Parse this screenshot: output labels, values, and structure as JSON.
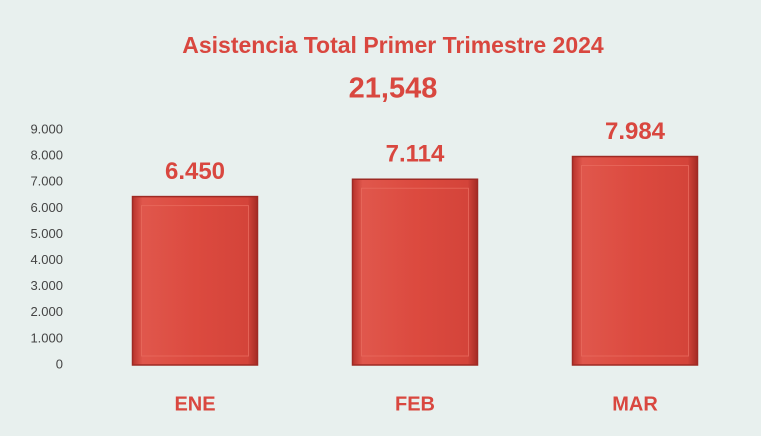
{
  "chart_data": {
    "type": "bar",
    "title": "Asistencia Total Primer Trimestre 2024",
    "subtitle": "21,548",
    "categories": [
      "ENE",
      "FEB",
      "MAR"
    ],
    "values": [
      6450,
      7114,
      7984
    ],
    "value_labels": [
      "6.450",
      "7.114",
      "7.984"
    ],
    "color": "#d9443a",
    "ylim": [
      0,
      9000
    ],
    "yticks": [
      0,
      {
        "value": 1000,
        "label": "1.000"
      },
      {
        "value": 2000,
        "label": "2.000"
      },
      {
        "value": 3000,
        "label": "3.000"
      },
      {
        "value": 4000,
        "label": "4.000"
      },
      {
        "value": 5000,
        "label": "5.000"
      },
      {
        "value": 6000,
        "label": "6.000"
      },
      {
        "value": 7000,
        "label": "7.000"
      },
      {
        "value": 8000,
        "label": "8.000"
      },
      {
        "value": 9000,
        "label": "9.000"
      }
    ],
    "grid": false
  }
}
